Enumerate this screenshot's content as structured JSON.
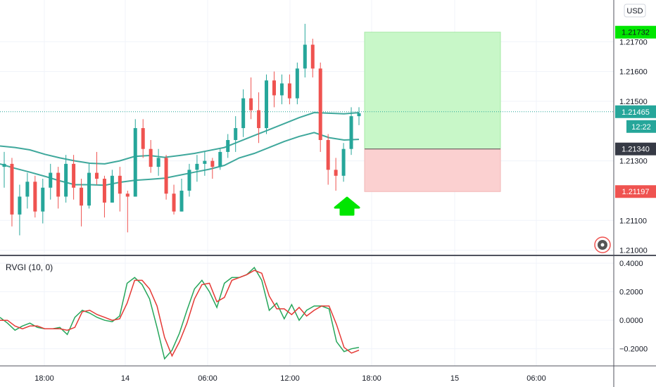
{
  "currency_label": "USD",
  "countdown": "12:22",
  "settings_icon": "gear-icon",
  "signal_arrow_icon": "arrow-up-icon",
  "colors": {
    "up": "#26a69a",
    "down": "#ef5350",
    "ema": "#3fa89c",
    "rvgi": "#26a65b",
    "signal": "#e53935",
    "target_zone": "#c8f7c8",
    "stop_zone": "#fbd0d0",
    "target_label": "#00e600",
    "arrow": "#00e600"
  },
  "chart_data": [
    {
      "type": "candlestick",
      "currency": "USD",
      "x_ticks": [
        "18:00",
        "14",
        "06:00",
        "12:00",
        "18:00",
        "15",
        "06:00"
      ],
      "y_ticks": [
        "1.21000",
        "1.21100",
        "1.21300",
        "1.21500",
        "1.21600",
        "1.21700"
      ],
      "ylim": [
        1.20985,
        1.2184
      ],
      "grid": true,
      "price_labels": {
        "target": "1.21732",
        "current": "1.21465",
        "entry": "1.21340",
        "stop": "1.21197"
      },
      "position": {
        "direction": "long",
        "entry": 1.2134,
        "target": 1.21732,
        "stop": 1.21197
      },
      "series": [
        {
          "name": "",
          "kind": "ema_fast",
          "values": [
            1.2135,
            1.21345,
            1.21337,
            1.21322,
            1.2131,
            1.213,
            1.21292,
            1.2129,
            1.213,
            1.21315,
            1.21318,
            1.21312,
            1.21318,
            1.21325,
            1.21335,
            1.21345,
            1.21365,
            1.21385,
            1.21405,
            1.21425,
            1.21445,
            1.21462,
            1.2146,
            1.21458,
            1.21462
          ]
        },
        {
          "name": "",
          "kind": "ema_slow",
          "values": [
            1.2129,
            1.21275,
            1.21262,
            1.21248,
            1.21233,
            1.2122,
            1.2122,
            1.21218,
            1.21228,
            1.21235,
            1.21238,
            1.21242,
            1.21252,
            1.21262,
            1.21272,
            1.21285,
            1.2131,
            1.21325,
            1.21345,
            1.21365,
            1.21382,
            1.21395,
            1.21378,
            1.2137,
            1.21372
          ]
        }
      ],
      "candles": [
        [
          1.2128,
          1.2133,
          1.2121,
          1.2129
        ],
        [
          1.2129,
          1.2131,
          1.2108,
          1.2112
        ],
        [
          1.2112,
          1.2122,
          1.2105,
          1.2118
        ],
        [
          1.2118,
          1.2126,
          1.2114,
          1.2123
        ],
        [
          1.2123,
          1.2125,
          1.2111,
          1.2113
        ],
        [
          1.2113,
          1.2124,
          1.2109,
          1.2121
        ],
        [
          1.2121,
          1.2129,
          1.2117,
          1.2126
        ],
        [
          1.2126,
          1.2128,
          1.2114,
          1.2118
        ],
        [
          1.2118,
          1.2132,
          1.2116,
          1.2129
        ],
        [
          1.2129,
          1.2132,
          1.2117,
          1.2121
        ],
        [
          1.2121,
          1.2124,
          1.2108,
          1.2115
        ],
        [
          1.2115,
          1.2129,
          1.2114,
          1.2126
        ],
        [
          1.2126,
          1.2133,
          1.2122,
          1.2124
        ],
        [
          1.2124,
          1.2125,
          1.2111,
          1.2116
        ],
        [
          1.2116,
          1.2127,
          1.2116,
          1.2125
        ],
        [
          1.2125,
          1.2128,
          1.2113,
          1.2119
        ],
        [
          1.2119,
          1.212,
          1.2106,
          1.2118
        ],
        [
          1.2118,
          1.2144,
          1.2118,
          1.2141
        ],
        [
          1.2141,
          1.2144,
          1.2131,
          1.2134
        ],
        [
          1.2134,
          1.2137,
          1.2126,
          1.2128
        ],
        [
          1.2128,
          1.2134,
          1.2125,
          1.2131
        ],
        [
          1.2131,
          1.2132,
          1.2117,
          1.2119
        ],
        [
          1.2119,
          1.2122,
          1.2112,
          1.2113
        ],
        [
          1.2113,
          1.2124,
          1.2113,
          1.212
        ],
        [
          1.212,
          1.2129,
          1.2118,
          1.2127
        ],
        [
          1.2127,
          1.2132,
          1.2123,
          1.2129
        ],
        [
          1.2129,
          1.2133,
          1.2125,
          1.213
        ],
        [
          1.213,
          1.2131,
          1.2124,
          1.2128
        ],
        [
          1.2128,
          1.2134,
          1.2127,
          1.2133
        ],
        [
          1.2133,
          1.2139,
          1.2131,
          1.2137
        ],
        [
          1.2137,
          1.2145,
          1.2133,
          1.2141
        ],
        [
          1.2141,
          1.2154,
          1.2138,
          1.2151
        ],
        [
          1.2151,
          1.2158,
          1.2144,
          1.2147
        ],
        [
          1.2147,
          1.2153,
          1.2136,
          1.2141
        ],
        [
          1.2141,
          1.2159,
          1.2139,
          1.2157
        ],
        [
          1.2157,
          1.216,
          1.2148,
          1.2152
        ],
        [
          1.2152,
          1.2159,
          1.2149,
          1.2156
        ],
        [
          1.2156,
          1.2159,
          1.2149,
          1.2151
        ],
        [
          1.2151,
          1.2163,
          1.2149,
          1.2161
        ],
        [
          1.2161,
          1.2176,
          1.2158,
          1.2169
        ],
        [
          1.2169,
          1.2171,
          1.2158,
          1.2161
        ],
        [
          1.2161,
          1.2163,
          1.2133,
          1.2137
        ],
        [
          1.2137,
          1.2139,
          1.2122,
          1.2127
        ],
        [
          1.2127,
          1.2131,
          1.212,
          1.2125
        ],
        [
          1.2125,
          1.2136,
          1.2123,
          1.2134
        ],
        [
          1.2134,
          1.2148,
          1.2132,
          1.2145
        ],
        [
          1.2145,
          1.2148,
          1.2142,
          1.2146
        ]
      ]
    },
    {
      "type": "line",
      "title": "RVGI (10, 0)",
      "y_ticks": [
        "0.4000",
        "0.2000",
        "0.0000",
        "−0.2000"
      ],
      "ylim": [
        -0.32,
        0.44
      ],
      "grid": true,
      "series": [
        {
          "name": "",
          "kind": "rvgi",
          "values": [
            0.02,
            -0.02,
            -0.07,
            -0.04,
            -0.02,
            -0.05,
            -0.06,
            -0.06,
            -0.05,
            -0.1,
            0.02,
            0.07,
            0.05,
            0.02,
            0.0,
            -0.01,
            0.03,
            0.26,
            0.3,
            0.25,
            0.15,
            -0.05,
            -0.27,
            -0.21,
            -0.09,
            0.07,
            0.22,
            0.28,
            0.2,
            0.09,
            0.26,
            0.3,
            0.3,
            0.32,
            0.37,
            0.28,
            0.07,
            0.12,
            0.01,
            0.11,
            0.0,
            0.07,
            0.1,
            0.1,
            0.08,
            -0.15,
            -0.22,
            -0.2,
            -0.19
          ]
        },
        {
          "name": "",
          "kind": "signal",
          "values": [
            0.0,
            0.0,
            -0.04,
            -0.06,
            -0.04,
            -0.04,
            -0.06,
            -0.06,
            -0.06,
            -0.07,
            -0.05,
            0.06,
            0.07,
            0.04,
            0.02,
            0.0,
            0.01,
            0.12,
            0.28,
            0.28,
            0.22,
            0.1,
            -0.12,
            -0.25,
            -0.15,
            -0.02,
            0.15,
            0.25,
            0.26,
            0.13,
            0.16,
            0.28,
            0.3,
            0.32,
            0.35,
            0.33,
            0.17,
            0.08,
            0.08,
            0.04,
            0.09,
            0.03,
            0.07,
            0.1,
            0.1,
            -0.03,
            -0.19,
            -0.23,
            -0.21
          ]
        }
      ]
    }
  ]
}
